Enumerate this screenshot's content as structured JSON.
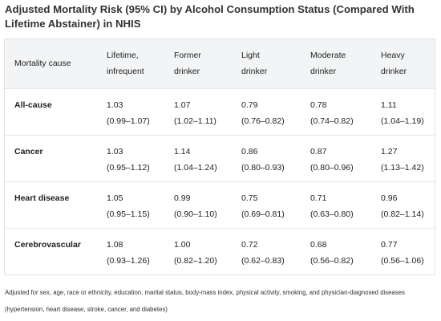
{
  "title": "Adjusted Mortality Risk (95% CI) by Alcohol Consumption Status (Compared With Lifetime Abstainer) in NHIS",
  "table": {
    "headers": [
      [
        "Mortality cause"
      ],
      [
        "Lifetime,",
        "infrequent"
      ],
      [
        "Former",
        "drinker"
      ],
      [
        "Light",
        "drinker"
      ],
      [
        "Moderate",
        "drinker"
      ],
      [
        "Heavy",
        "drinker"
      ]
    ],
    "rows": [
      {
        "cause": "All-cause",
        "cells": [
          {
            "value": "1.03",
            "ci": "(0.99–1.07)"
          },
          {
            "value": "1.07",
            "ci": "(1.02–1.11)"
          },
          {
            "value": "0.79",
            "ci": "(0.76–0.82)"
          },
          {
            "value": "0.78",
            "ci": "(0.74–0.82)"
          },
          {
            "value": "1.11",
            "ci": "(1.04–1.19)"
          }
        ]
      },
      {
        "cause": "Cancer",
        "cells": [
          {
            "value": "1.03",
            "ci": "(0.95–1.12)"
          },
          {
            "value": "1.14",
            "ci": "(1.04–1.24)"
          },
          {
            "value": "0.86",
            "ci": "(0.80–0.93)"
          },
          {
            "value": "0.87",
            "ci": "(0.80–0.96)"
          },
          {
            "value": "1.27",
            "ci": "(1.13–1.42)"
          }
        ]
      },
      {
        "cause": "Heart disease",
        "cells": [
          {
            "value": "1.05",
            "ci": "(0.95–1.15)"
          },
          {
            "value": "0.99",
            "ci": "(0.90–1.10)"
          },
          {
            "value": "0.75",
            "ci": "(0.69–0.81)"
          },
          {
            "value": "0.71",
            "ci": "(0.63–0.80)"
          },
          {
            "value": "0.96",
            "ci": "(0.82–1.14)"
          }
        ]
      },
      {
        "cause": "Cerebrovascular",
        "cells": [
          {
            "value": "1.08",
            "ci": "(0.93–1.26)"
          },
          {
            "value": "1.00",
            "ci": "(0.82–1.20)"
          },
          {
            "value": "0.72",
            "ci": "(0.62–0.83)"
          },
          {
            "value": "0.68",
            "ci": "(0.56–0.82)"
          },
          {
            "value": "0.77",
            "ci": "(0.56–1.06)"
          }
        ]
      }
    ]
  },
  "footnote": "Adjusted for sex, age, race or ethnicity, education, marital status, body-mass index, physical activity, smoking, and physician-diagnosed diseases (hypertension, heart disease, stroke, cancer, and diabetes)"
}
